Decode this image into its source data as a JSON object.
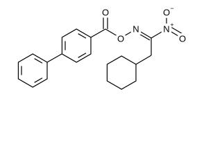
{
  "atoms": [
    {
      "label": "O"
    },
    {
      "label": "O"
    },
    {
      "label": "N"
    },
    {
      "label": "N",
      "charge": "+"
    },
    {
      "label": "O",
      "charge": "−"
    },
    {
      "label": "O"
    }
  ]
}
